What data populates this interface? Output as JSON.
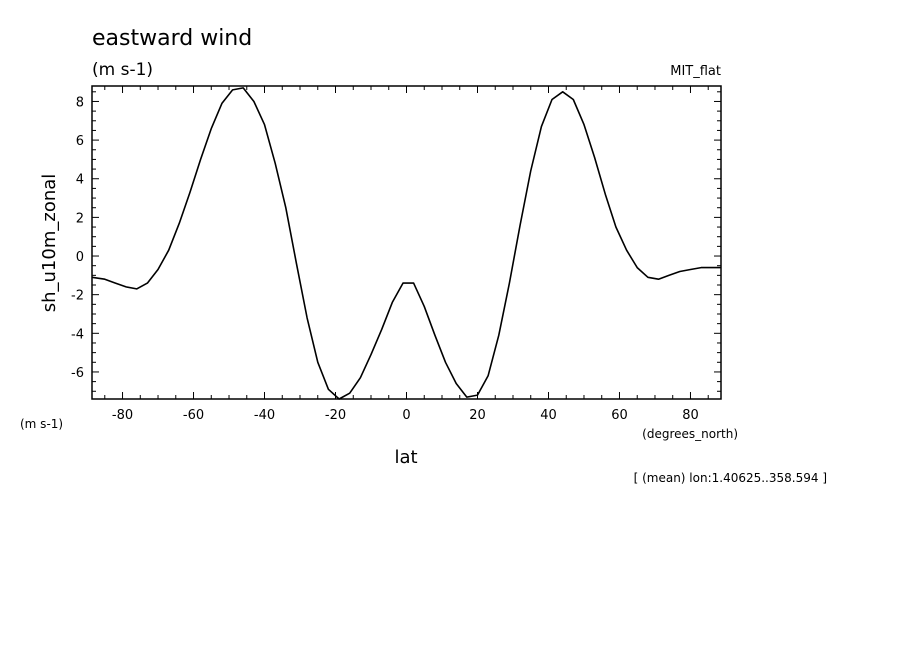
{
  "chart_data": {
    "type": "line",
    "title": "eastward wind",
    "subtitle": "(m s-1)",
    "source_label": "MIT_flat",
    "xlabel": "lat",
    "xunits": "(degrees_north)",
    "ylabel": "sh_u10m_zonal",
    "yunits": "(m s-1)",
    "footnote": "[ (mean) lon:1.40625..358.594 ]",
    "xlim": [
      -88.6,
      88.6
    ],
    "ylim": [
      -7.4,
      8.8
    ],
    "xticks": [
      -80,
      -60,
      -40,
      -20,
      0,
      20,
      40,
      60,
      80
    ],
    "xtick_labels": [
      "-80",
      "-60",
      "-40",
      "-20",
      "0",
      "20",
      "40",
      "60",
      "80"
    ],
    "yticks": [
      -6,
      -4,
      -2,
      0,
      2,
      4,
      6,
      8
    ],
    "ytick_labels": [
      "-6",
      "-4",
      "-2",
      "0",
      "2",
      "4",
      "6",
      "8"
    ],
    "grid": false,
    "series": [
      {
        "x": [
          -88.6,
          -85,
          -82,
          -79,
          -76,
          -73,
          -70,
          -67,
          -64,
          -61,
          -58,
          -55,
          -52,
          -49,
          -46,
          -43,
          -40,
          -37,
          -34,
          -31,
          -28,
          -25,
          -22,
          -19,
          -16,
          -13,
          -10,
          -7,
          -4,
          -1,
          2,
          5,
          8,
          11,
          14,
          17,
          20,
          23,
          26,
          29,
          32,
          35,
          38,
          41,
          44,
          47,
          50,
          53,
          56,
          59,
          62,
          65,
          68,
          71,
          74,
          77,
          80,
          83,
          86,
          88.6
        ],
        "y": [
          -1.1,
          -1.2,
          -1.4,
          -1.6,
          -1.7,
          -1.4,
          -0.7,
          0.3,
          1.7,
          3.3,
          5.0,
          6.6,
          7.9,
          8.6,
          8.7,
          8.0,
          6.8,
          4.8,
          2.5,
          -0.4,
          -3.2,
          -5.5,
          -6.9,
          -7.4,
          -7.1,
          -6.3,
          -5.1,
          -3.8,
          -2.4,
          -1.4,
          -1.4,
          -2.6,
          -4.1,
          -5.5,
          -6.6,
          -7.3,
          -7.2,
          -6.2,
          -4.1,
          -1.4,
          1.6,
          4.4,
          6.7,
          8.1,
          8.5,
          8.1,
          6.8,
          5.1,
          3.2,
          1.5,
          0.3,
          -0.6,
          -1.1,
          -1.2,
          -1.0,
          -0.8,
          -0.7,
          -0.6,
          -0.6,
          -0.6
        ]
      }
    ]
  }
}
